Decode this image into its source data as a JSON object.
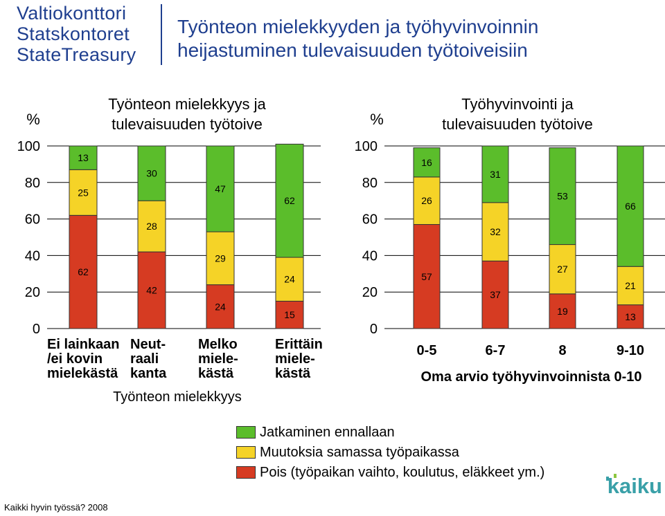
{
  "header": {
    "logo_lines": [
      "Valtiokonttori",
      "Statskontoret",
      "StateTreasury"
    ],
    "title_lines": [
      "Työnteon mielekkyyden ja työhyvinvoinnin",
      "heijastuminen tulevaisuuden työtoiveisiin"
    ]
  },
  "colors": {
    "green": "#5bbd2b",
    "yellow": "#f5d327",
    "red": "#d63b22",
    "edge": "#333333"
  },
  "chart_data": [
    {
      "type": "bar",
      "stacked": true,
      "title_lines": [
        "Työnteon mielekkyys ja",
        "tulevaisuuden työtoive"
      ],
      "ylabel": "%",
      "ylim": [
        0,
        100
      ],
      "yticks": [
        "0",
        "20",
        "40",
        "60",
        "80",
        "100"
      ],
      "grid": true,
      "categories": [
        [
          "Ei lainkaan",
          "/ei kovin",
          "mielekästä"
        ],
        [
          "Neut-",
          "raali",
          "kanta"
        ],
        [
          "Melko",
          "miele-",
          "kästä"
        ],
        [
          "Erittäin",
          "miele-",
          "kästä"
        ]
      ],
      "xlabel": "Työnteon mielekkyys",
      "series": [
        {
          "name": "Pois (työpaikan vaihto, koulutus, eläkkeet ym.)",
          "color": "#d63b22",
          "values": [
            62,
            42,
            24,
            15
          ],
          "labels": [
            "62",
            "42",
            "24",
            "15"
          ]
        },
        {
          "name": "Muutoksia samassa työpaikassa",
          "color": "#f5d327",
          "values": [
            25,
            28,
            29,
            24
          ],
          "labels": [
            "25",
            "28",
            "29",
            "24"
          ]
        },
        {
          "name": "Jatkaminen ennallaan",
          "color": "#5bbd2b",
          "values": [
            13,
            30,
            47,
            62
          ],
          "labels": [
            "13",
            "30",
            "47",
            "62"
          ]
        }
      ]
    },
    {
      "type": "bar",
      "stacked": true,
      "title_lines": [
        "Työhyvinvointi ja",
        "tulevaisuuden työtoive"
      ],
      "ylabel": "%",
      "ylim": [
        0,
        100
      ],
      "yticks": [
        "0",
        "20",
        "40",
        "60",
        "80",
        "100"
      ],
      "grid": true,
      "categories": [
        [
          "0-5"
        ],
        [
          "6-7"
        ],
        [
          "8"
        ],
        [
          "9-10"
        ]
      ],
      "xlabel": "Oma arvio työhyvinvoinnista 0-10",
      "series": [
        {
          "name": "Pois (työpaikan vaihto, koulutus, eläkkeet ym.)",
          "color": "#d63b22",
          "values": [
            57,
            37,
            19,
            13
          ],
          "labels": [
            "57",
            "37",
            "19",
            "13"
          ]
        },
        {
          "name": "Muutoksia samassa työpaikassa",
          "color": "#f5d327",
          "values": [
            26,
            32,
            27,
            21
          ],
          "labels": [
            "26",
            "32",
            "27",
            "21"
          ]
        },
        {
          "name": "Jatkaminen ennallaan",
          "color": "#5bbd2b",
          "values": [
            16,
            31,
            53,
            66
          ],
          "labels": [
            "16",
            "31",
            "53",
            "66"
          ]
        }
      ]
    }
  ],
  "legend": [
    {
      "label": "Jatkaminen ennallaan",
      "color": "#5bbd2b"
    },
    {
      "label": "Muutoksia samassa työpaikassa",
      "color": "#f5d327"
    },
    {
      "label": "Pois (työpaikan vaihto, koulutus, eläkkeet ym.)",
      "color": "#d63b22"
    }
  ],
  "brand": {
    "kaiku_text": "kaiku",
    "kaiku_color": "#3aa0a8"
  },
  "footnote": "Kaikki hyvin työssä? 2008"
}
